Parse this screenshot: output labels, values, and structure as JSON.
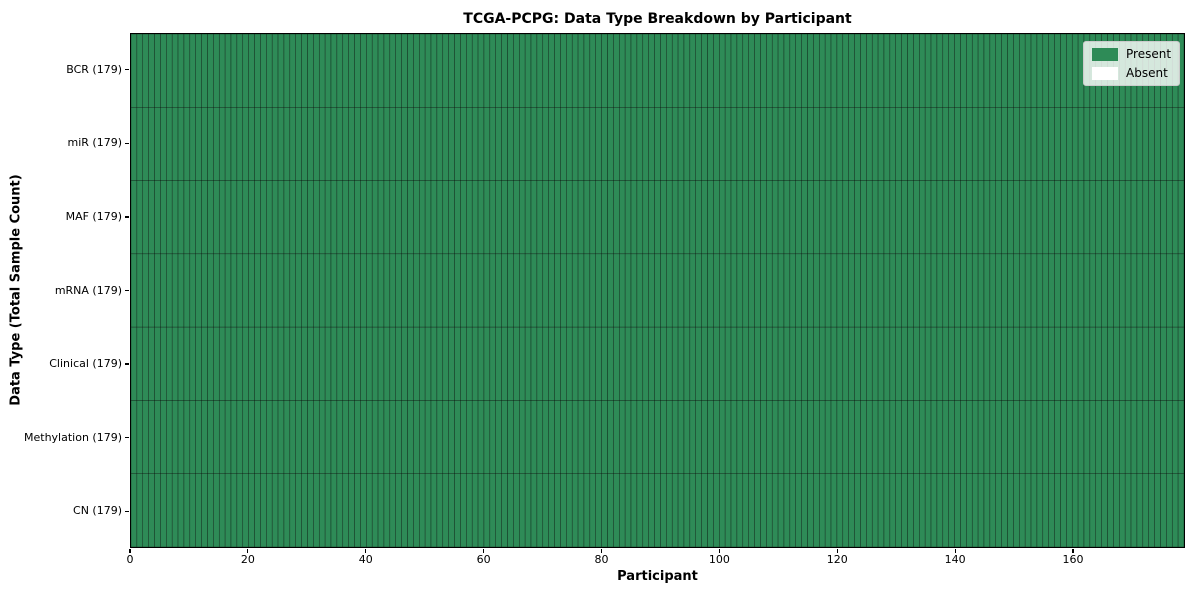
{
  "title": "TCGA-PCPG: Data Type Breakdown by Participant",
  "x_axis": {
    "label": "Participant",
    "ticks": [
      0,
      20,
      40,
      60,
      80,
      100,
      120,
      140,
      160
    ],
    "min": 0,
    "max": 179
  },
  "y_axis": {
    "label": "Data Type (Total Sample Count)"
  },
  "legend": {
    "position": "upper right",
    "entries": [
      {
        "label": "Present",
        "color": "#2e8b57"
      },
      {
        "label": "Absent",
        "color": "#ffffff"
      }
    ]
  },
  "chart_data": {
    "type": "heatmap",
    "title": "TCGA-PCPG: Data Type Breakdown by Participant",
    "xlabel": "Participant",
    "ylabel": "Data Type (Total Sample Count)",
    "n_participants": 179,
    "xlim": [
      0,
      179
    ],
    "x_ticks": [
      0,
      20,
      40,
      60,
      80,
      100,
      120,
      140,
      160
    ],
    "grid": true,
    "legend_position": "upper right",
    "rows": [
      {
        "label": "BCR (179)",
        "data_type": "BCR",
        "total_samples": 179,
        "present_count": 179,
        "absent_count": 0
      },
      {
        "label": "miR (179)",
        "data_type": "miR",
        "total_samples": 179,
        "present_count": 179,
        "absent_count": 0
      },
      {
        "label": "MAF (179)",
        "data_type": "MAF",
        "total_samples": 179,
        "present_count": 179,
        "absent_count": 0
      },
      {
        "label": "mRNA (179)",
        "data_type": "mRNA",
        "total_samples": 179,
        "present_count": 179,
        "absent_count": 0
      },
      {
        "label": "Clinical (179)",
        "data_type": "Clinical",
        "total_samples": 179,
        "present_count": 179,
        "absent_count": 0
      },
      {
        "label": "Methylation (179)",
        "data_type": "Methylation",
        "total_samples": 179,
        "present_count": 179,
        "absent_count": 0
      },
      {
        "label": "CN (179)",
        "data_type": "CN",
        "total_samples": 179,
        "present_count": 179,
        "absent_count": 0
      }
    ],
    "colors": {
      "present": "#2e8b57",
      "absent": "#ffffff",
      "grid_line": "rgba(0,0,0,0.6)",
      "spine": "#000000"
    }
  }
}
